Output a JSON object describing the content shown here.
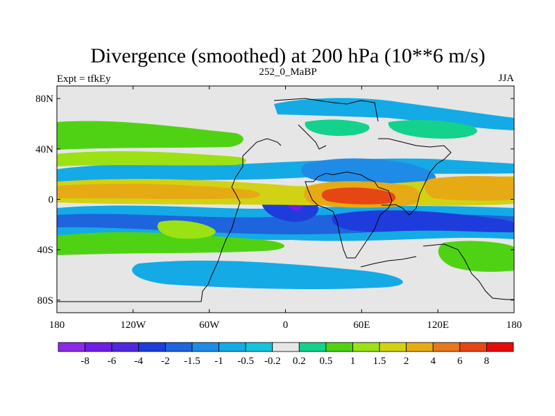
{
  "title": "Divergence (smoothed) at 200 hPa (10**6 m/s)",
  "left_label": "Expt = tfkEy",
  "center_label": "252_0_MaBP",
  "right_label": "JJA",
  "colors": {
    "background": "#ffffff",
    "map_fill": "#e6e6e6",
    "coast": "#000000"
  },
  "chart_data": {
    "type": "heatmap",
    "projection": "cylindrical-equidistant",
    "xlim": [
      -180,
      180
    ],
    "ylim": [
      -90,
      90
    ],
    "x_ticks": [
      {
        "value": -180,
        "label": "180"
      },
      {
        "value": -120,
        "label": "120W"
      },
      {
        "value": -60,
        "label": "60W"
      },
      {
        "value": 0,
        "label": "0"
      },
      {
        "value": 60,
        "label": "60E"
      },
      {
        "value": 120,
        "label": "120E"
      },
      {
        "value": 180,
        "label": "180"
      }
    ],
    "y_ticks": [
      {
        "value": 80,
        "label": "80N"
      },
      {
        "value": 40,
        "label": "40N"
      },
      {
        "value": 0,
        "label": "0"
      },
      {
        "value": -40,
        "label": "40S"
      },
      {
        "value": -80,
        "label": "80S"
      }
    ],
    "contour_levels": [
      "-8",
      "-6",
      "-4",
      "-2",
      "-1.5",
      "-1",
      "-0.5",
      "-0.2",
      "0.2",
      "0.5",
      "1",
      "1.5",
      "2",
      "4",
      "6",
      "8"
    ],
    "colorbar_colors": [
      "#8c2ae6",
      "#6e1ee6",
      "#5028e0",
      "#1e3cdc",
      "#1e64dc",
      "#1e8ce6",
      "#14aae6",
      "#14c3dc",
      "#e6e6e6",
      "#14d28c",
      "#50d214",
      "#9be114",
      "#d2d214",
      "#e6aa14",
      "#e6781e",
      "#e64614",
      "#e60a0a"
    ],
    "field_samples": [
      {
        "lon": -130,
        "lat": 15,
        "value": 3
      },
      {
        "lon": 150,
        "lat": 10,
        "value": 3
      },
      {
        "lon": 60,
        "lat": 0,
        "value": 5
      },
      {
        "lon": 90,
        "lat": 8,
        "value": 4
      },
      {
        "lon": 80,
        "lat": -25,
        "value": -2
      },
      {
        "lon": 40,
        "lat": 20,
        "value": -2.5
      },
      {
        "lon": 0,
        "lat": -5,
        "value": -5
      },
      {
        "lon": 10,
        "lat": -5,
        "value": -6
      },
      {
        "lon": -100,
        "lat": -10,
        "value": -1.5
      },
      {
        "lon": -130,
        "lat": -25,
        "value": 1.5
      },
      {
        "lon": 0,
        "lat": 70,
        "value": -1
      },
      {
        "lon": 145,
        "lat": -50,
        "value": 1
      }
    ]
  }
}
